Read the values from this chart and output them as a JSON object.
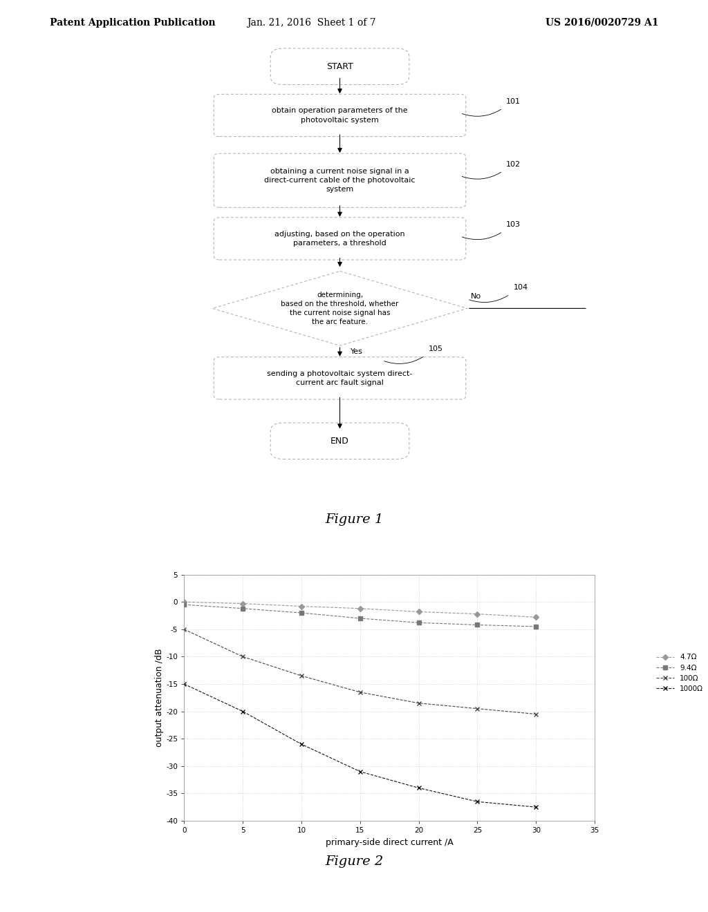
{
  "header_left": "Patent Application Publication",
  "header_mid": "Jan. 21, 2016  Sheet 1 of 7",
  "header_right": "US 2016/0020729 A1",
  "flowchart": {
    "start_label": "START",
    "end_label": "END",
    "box_101": "obtain operation parameters of the\nphotovoltaic system",
    "box_102": "obtaining a current noise signal in a\ndirect-current cable of the photovoltaic\nsystem",
    "box_103": "adjusting, based on the operation\nparameters, a threshold",
    "box_104": "determining,\nbased on the threshold, whether\nthe current noise signal has\nthe arc feature.",
    "box_105": "sending a photovoltaic system direct-\ncurrent arc fault signal",
    "yes_label": "Yes",
    "no_label": "No"
  },
  "graph": {
    "xlabel": "primary-side direct current /A",
    "ylabel": "output attenuation /dB",
    "xlim": [
      0,
      35
    ],
    "ylim_bottom": -40,
    "ylim_top": 5,
    "xticks": [
      0,
      5,
      10,
      15,
      20,
      25,
      30,
      35
    ],
    "yticks": [
      5,
      0,
      -5,
      -10,
      -15,
      -20,
      -25,
      -30,
      -35,
      -40
    ],
    "series": [
      {
        "label": "4.7Ω",
        "x": [
          0,
          5,
          10,
          15,
          20,
          25,
          30
        ],
        "y": [
          0.0,
          -0.3,
          -0.8,
          -1.2,
          -1.8,
          -2.2,
          -2.8
        ],
        "marker": "D",
        "color": "#999999"
      },
      {
        "label": "9.4Ω",
        "x": [
          0,
          5,
          10,
          15,
          20,
          25,
          30
        ],
        "y": [
          -0.5,
          -1.2,
          -2.0,
          -3.0,
          -3.8,
          -4.2,
          -4.5
        ],
        "marker": "s",
        "color": "#777777"
      },
      {
        "label": "100Ω",
        "x": [
          0,
          5,
          10,
          15,
          20,
          25,
          30
        ],
        "y": [
          -5.0,
          -10.0,
          -13.5,
          -16.5,
          -18.5,
          -19.5,
          -20.5
        ],
        "marker": "x",
        "color": "#444444"
      },
      {
        "label": "1000Ω",
        "x": [
          0,
          5,
          10,
          15,
          20,
          25,
          30
        ],
        "y": [
          -15.0,
          -20.0,
          -26.0,
          -31.0,
          -34.0,
          -36.5,
          -37.5
        ],
        "marker": "x",
        "color": "#111111"
      }
    ],
    "figure1_label": "Figure 1",
    "figure2_label": "Figure 2"
  },
  "bg_color": "#ffffff"
}
